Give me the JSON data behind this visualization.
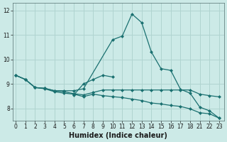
{
  "xlabel": "Humidex (Indice chaleur)",
  "bg_color": "#cceae7",
  "grid_color": "#b0d4d0",
  "line_color": "#1a7070",
  "ylim": [
    7.5,
    12.3
  ],
  "yticks": [
    8,
    9,
    10,
    11,
    12
  ],
  "xtick_positions": [
    0,
    1,
    2,
    3,
    4,
    5,
    6,
    7,
    8,
    9,
    10,
    11,
    12,
    13,
    14,
    15,
    16,
    17,
    18,
    21,
    22,
    23
  ],
  "xtick_labels": [
    "0",
    "1",
    "2",
    "3",
    "4",
    "5",
    "6",
    "7",
    "8",
    "9",
    "10",
    "11",
    "12",
    "13",
    "14",
    "15",
    "16",
    "17",
    "18",
    "21",
    "22",
    "23"
  ],
  "line1_x": [
    0,
    1,
    2,
    3,
    4,
    5,
    6,
    7,
    10,
    11,
    12,
    13,
    14,
    15,
    16,
    17,
    18,
    21,
    22,
    23
  ],
  "line1_y": [
    9.35,
    9.18,
    8.85,
    8.82,
    8.72,
    8.72,
    8.72,
    8.8,
    10.8,
    10.95,
    11.85,
    11.5,
    10.3,
    9.62,
    9.55,
    8.78,
    8.62,
    8.05,
    7.9,
    7.6
  ],
  "line2_x": [
    0,
    1,
    2,
    3,
    4,
    5,
    6,
    7,
    8,
    9,
    10,
    11,
    12,
    13,
    14,
    15,
    16,
    17,
    18,
    21,
    22,
    23
  ],
  "line2_y": [
    9.35,
    9.18,
    8.85,
    8.82,
    8.72,
    8.68,
    8.6,
    8.55,
    8.65,
    8.75,
    8.75,
    8.75,
    8.75,
    8.75,
    8.75,
    8.75,
    8.75,
    8.75,
    8.75,
    8.58,
    8.52,
    8.47
  ],
  "line3_x": [
    0,
    1,
    2,
    3,
    4,
    5,
    6,
    7,
    8,
    9,
    10,
    11,
    12,
    13,
    14,
    15,
    16,
    17,
    18,
    21,
    22,
    23
  ],
  "line3_y": [
    9.35,
    9.18,
    8.85,
    8.8,
    8.68,
    8.62,
    8.58,
    8.48,
    8.58,
    8.52,
    8.48,
    8.44,
    8.38,
    8.32,
    8.22,
    8.18,
    8.12,
    8.08,
    7.98,
    7.82,
    7.78,
    7.6
  ],
  "line4_x": [
    6,
    7,
    8,
    9,
    10
  ],
  "line4_y": [
    8.55,
    9.0,
    9.18,
    9.35,
    9.28
  ],
  "marker_size": 2.5,
  "tick_fontsize": 5.5,
  "label_fontsize": 7.0
}
